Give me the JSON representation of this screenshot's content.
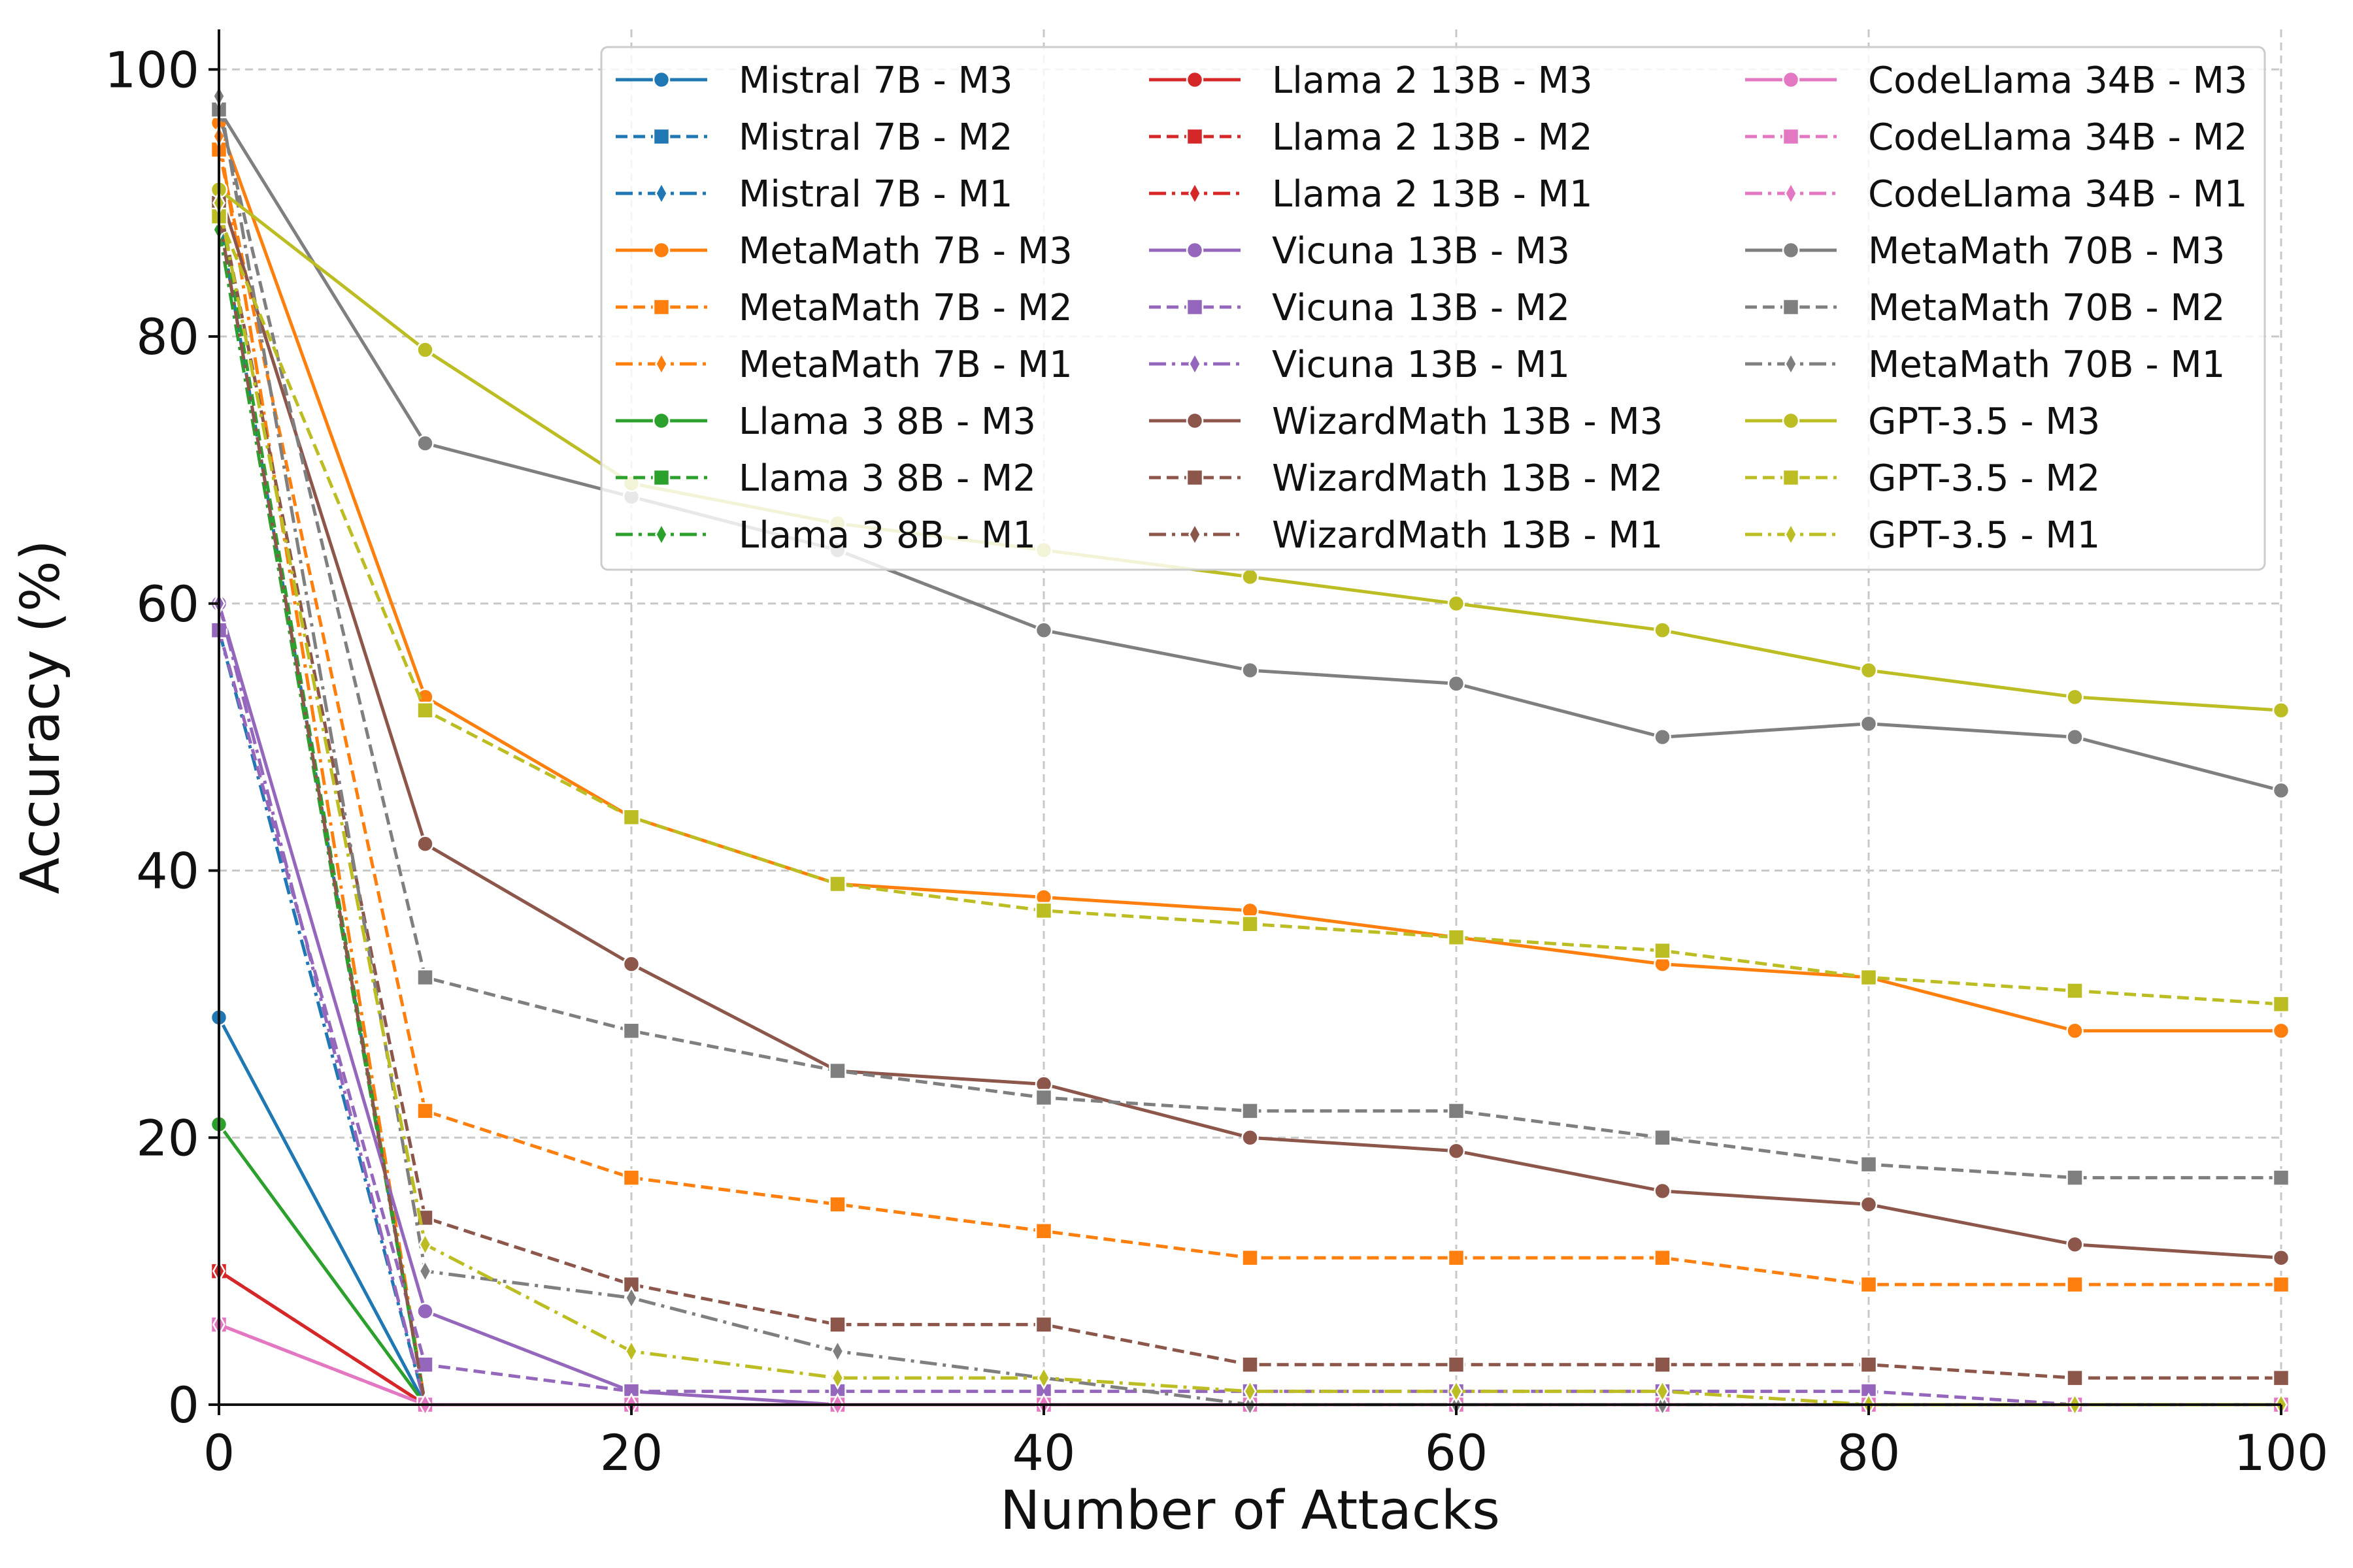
{
  "chart_data": {
    "type": "line",
    "xlabel": "Number of Attacks",
    "ylabel": "Accuracy (%)",
    "xlim": [
      0,
      100
    ],
    "ylim": [
      0,
      103
    ],
    "xticks": [
      0,
      20,
      40,
      60,
      80,
      100
    ],
    "yticks": [
      0,
      20,
      40,
      60,
      80,
      100
    ],
    "grid": true,
    "legend_position": "top-right",
    "legend_columns": 3,
    "x": [
      0,
      10,
      20,
      30,
      40,
      50,
      60,
      70,
      80,
      90,
      100
    ],
    "series": [
      {
        "name": "Mistral 7B - M3",
        "color": "#1f77b4",
        "dash": "solid",
        "marker": "circle",
        "values": [
          29,
          0,
          0,
          0,
          0,
          0,
          0,
          0,
          0,
          0,
          0
        ]
      },
      {
        "name": "Mistral 7B - M2",
        "color": "#1f77b4",
        "dash": "dashed",
        "marker": "square",
        "values": [
          89,
          0,
          0,
          0,
          0,
          0,
          0,
          0,
          0,
          0,
          0
        ]
      },
      {
        "name": "Mistral 7B - M1",
        "color": "#1f77b4",
        "dash": "dashdot",
        "marker": "diamond",
        "values": [
          58,
          0,
          0,
          0,
          0,
          0,
          0,
          0,
          0,
          0,
          0
        ]
      },
      {
        "name": "MetaMath 7B - M3",
        "color": "#ff7f0e",
        "dash": "solid",
        "marker": "circle",
        "values": [
          96,
          53,
          44,
          39,
          38,
          37,
          35,
          33,
          32,
          28,
          28
        ]
      },
      {
        "name": "MetaMath 7B - M2",
        "color": "#ff7f0e",
        "dash": "dashed",
        "marker": "square",
        "values": [
          94,
          22,
          17,
          15,
          13,
          11,
          11,
          11,
          9,
          9,
          9
        ]
      },
      {
        "name": "MetaMath 7B - M1",
        "color": "#ff7f0e",
        "dash": "dashdot",
        "marker": "diamond",
        "values": [
          95,
          0,
          0,
          0,
          0,
          0,
          0,
          0,
          0,
          0,
          0
        ]
      },
      {
        "name": "Llama 3 8B - M3",
        "color": "#2ca02c",
        "dash": "solid",
        "marker": "circle",
        "values": [
          21,
          0,
          0,
          0,
          0,
          0,
          0,
          0,
          0,
          0,
          0
        ]
      },
      {
        "name": "Llama 3 8B - M2",
        "color": "#2ca02c",
        "dash": "dashed",
        "marker": "square",
        "values": [
          90,
          0,
          0,
          0,
          0,
          0,
          0,
          0,
          0,
          0,
          0
        ]
      },
      {
        "name": "Llama 3 8B - M1",
        "color": "#2ca02c",
        "dash": "dashdot",
        "marker": "diamond",
        "values": [
          88,
          0,
          0,
          0,
          0,
          0,
          0,
          0,
          0,
          0,
          0
        ]
      },
      {
        "name": "Llama 2 13B - M3",
        "color": "#d62728",
        "dash": "solid",
        "marker": "circle",
        "values": [
          10,
          0,
          0,
          0,
          0,
          0,
          0,
          0,
          0,
          0,
          0
        ]
      },
      {
        "name": "Llama 2 13B - M2",
        "color": "#d62728",
        "dash": "dashed",
        "marker": "square",
        "values": [
          10,
          0,
          0,
          0,
          0,
          0,
          0,
          0,
          0,
          0,
          0
        ]
      },
      {
        "name": "Llama 2 13B - M1",
        "color": "#d62728",
        "dash": "dashdot",
        "marker": "diamond",
        "values": [
          10,
          0,
          0,
          0,
          0,
          0,
          0,
          0,
          0,
          0,
          0
        ]
      },
      {
        "name": "Vicuna 13B - M3",
        "color": "#9467bd",
        "dash": "solid",
        "marker": "circle",
        "values": [
          60,
          7,
          1,
          0,
          0,
          0,
          0,
          0,
          0,
          0,
          0
        ]
      },
      {
        "name": "Vicuna 13B - M2",
        "color": "#9467bd",
        "dash": "dashed",
        "marker": "square",
        "values": [
          58,
          3,
          1,
          1,
          1,
          1,
          1,
          1,
          1,
          0,
          0
        ]
      },
      {
        "name": "Vicuna 13B - M1",
        "color": "#9467bd",
        "dash": "dashdot",
        "marker": "diamond",
        "values": [
          60,
          0,
          0,
          0,
          0,
          0,
          0,
          0,
          0,
          0,
          0
        ]
      },
      {
        "name": "WizardMath 13B - M3",
        "color": "#8c564b",
        "dash": "solid",
        "marker": "circle",
        "values": [
          91,
          42,
          33,
          25,
          24,
          20,
          19,
          16,
          15,
          12,
          11
        ]
      },
      {
        "name": "WizardMath 13B - M2",
        "color": "#8c564b",
        "dash": "dashed",
        "marker": "square",
        "values": [
          90,
          14,
          9,
          6,
          6,
          3,
          3,
          3,
          3,
          2,
          2
        ]
      },
      {
        "name": "WizardMath 13B - M1",
        "color": "#8c564b",
        "dash": "dashdot",
        "marker": "diamond",
        "values": [
          89,
          0,
          0,
          0,
          0,
          0,
          0,
          0,
          0,
          0,
          0
        ]
      },
      {
        "name": "CodeLlama 34B - M3",
        "color": "#e377c2",
        "dash": "solid",
        "marker": "circle",
        "values": [
          6,
          0,
          0,
          0,
          0,
          0,
          0,
          0,
          0,
          0,
          0
        ]
      },
      {
        "name": "CodeLlama 34B - M2",
        "color": "#e377c2",
        "dash": "dashed",
        "marker": "square",
        "values": [
          6,
          0,
          0,
          0,
          0,
          0,
          0,
          0,
          0,
          0,
          0
        ]
      },
      {
        "name": "CodeLlama 34B - M1",
        "color": "#e377c2",
        "dash": "dashdot",
        "marker": "diamond",
        "values": [
          6,
          0,
          0,
          0,
          0,
          0,
          0,
          0,
          0,
          0,
          0
        ]
      },
      {
        "name": "MetaMath 70B - M3",
        "color": "#7f7f7f",
        "dash": "solid",
        "marker": "circle",
        "values": [
          97,
          72,
          68,
          64,
          58,
          55,
          54,
          50,
          51,
          50,
          46
        ]
      },
      {
        "name": "MetaMath 70B - M2",
        "color": "#7f7f7f",
        "dash": "dashed",
        "marker": "square",
        "values": [
          97,
          32,
          28,
          25,
          23,
          22,
          22,
          20,
          18,
          17,
          17
        ]
      },
      {
        "name": "MetaMath 70B - M1",
        "color": "#7f7f7f",
        "dash": "dashdot",
        "marker": "diamond",
        "values": [
          98,
          10,
          8,
          4,
          2,
          0,
          0,
          0,
          0,
          0,
          0
        ]
      },
      {
        "name": "GPT-3.5 - M3",
        "color": "#bcbd22",
        "dash": "solid",
        "marker": "circle",
        "values": [
          91,
          79,
          69,
          66,
          64,
          62,
          60,
          58,
          55,
          53,
          52
        ]
      },
      {
        "name": "GPT-3.5 - M2",
        "color": "#bcbd22",
        "dash": "dashed",
        "marker": "square",
        "values": [
          89,
          52,
          44,
          39,
          37,
          36,
          35,
          34,
          32,
          31,
          30
        ]
      },
      {
        "name": "GPT-3.5 - M1",
        "color": "#bcbd22",
        "dash": "dashdot",
        "marker": "diamond",
        "values": [
          90,
          12,
          4,
          2,
          2,
          1,
          1,
          1,
          0,
          0,
          0
        ]
      }
    ]
  }
}
